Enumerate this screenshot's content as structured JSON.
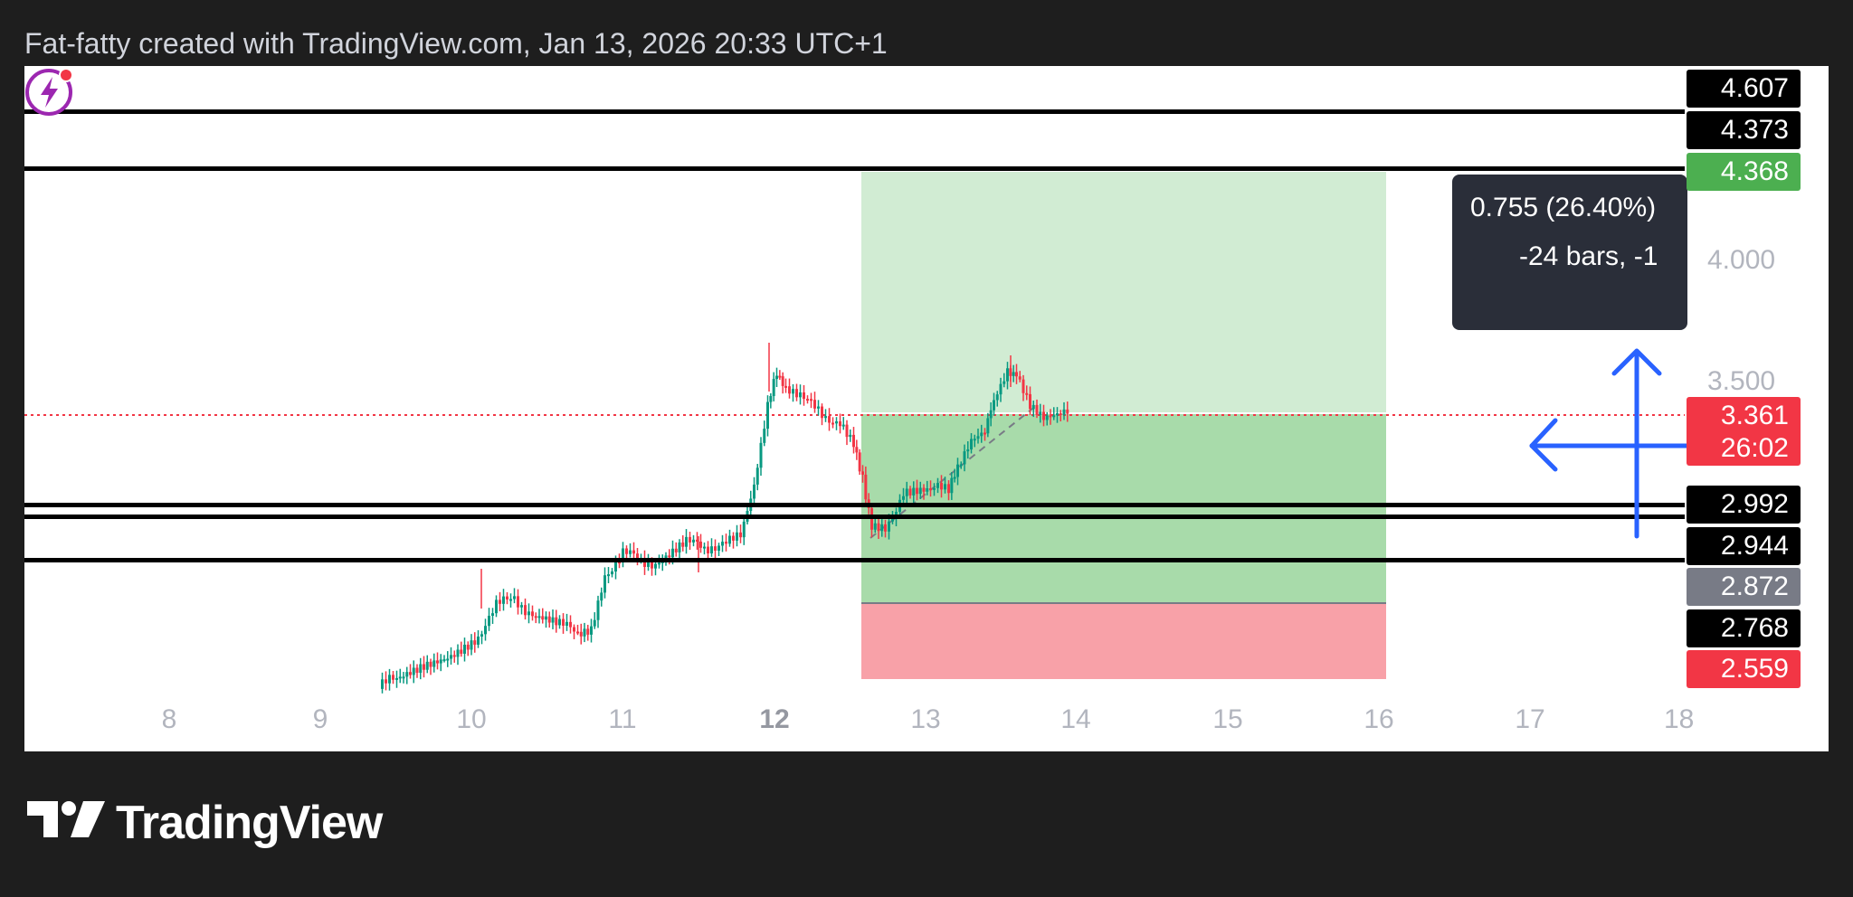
{
  "header": {
    "text": "Fat-fatty created with TradingView.com, Jan 13, 2026 20:33 UTC+1"
  },
  "footer": {
    "brand": "TradingView"
  },
  "chart_data": {
    "type": "candlestick",
    "x_ticks": [
      "8",
      "9",
      "10",
      "11",
      "12",
      "13",
      "14",
      "15",
      "16",
      "17",
      "18"
    ],
    "x_tick_bold": "12",
    "y_ticks": [
      "4.000",
      "3.500"
    ],
    "horizontal_levels": [
      4.607,
      4.373,
      2.992,
      2.944,
      2.768
    ],
    "current_price": {
      "value": "3.361",
      "countdown": "26:02",
      "color": "#f23645"
    },
    "price_labels": [
      {
        "text": "4.607",
        "bg": "#000000"
      },
      {
        "text": "4.373",
        "bg": "#000000"
      },
      {
        "text": "4.368",
        "bg": "#4caf50"
      },
      {
        "text": "2.992",
        "bg": "#000000"
      },
      {
        "text": "2.944",
        "bg": "#000000"
      },
      {
        "text": "2.872",
        "bg": "#787b86"
      },
      {
        "text": "2.768",
        "bg": "#000000"
      },
      {
        "text": "2.559",
        "bg": "#f23645"
      }
    ],
    "position": {
      "entry": 2.872,
      "target": 4.368,
      "stop": 2.559,
      "profit_color": "#c8e6c9",
      "loss_color": "#f7a1a7"
    },
    "measure_tooltip": {
      "line1": "0.755 (26.40%)",
      "line2": "-24 bars, -1"
    },
    "colors": {
      "up": "#089981",
      "down": "#f23645",
      "levels": "#000000",
      "arrows": "#2962ff",
      "alert": "#9c27b0"
    }
  }
}
